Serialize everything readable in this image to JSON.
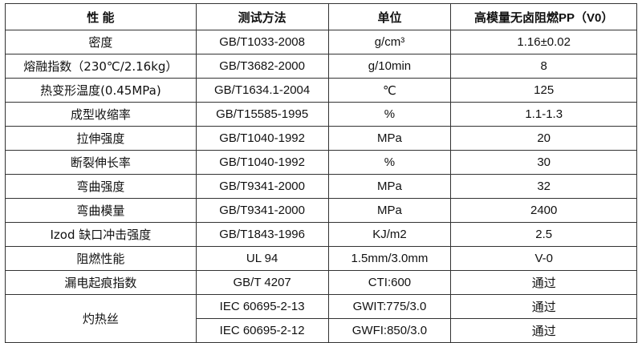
{
  "headers": [
    "性 能",
    "测试方法",
    "单位",
    "高模量无卤阻燃PP（V0）"
  ],
  "rows": [
    {
      "property": "密度",
      "method": "GB/T1033-2008",
      "unit": "g/cm³",
      "value": "1.16±0.02"
    },
    {
      "property": "熔融指数（230℃/2.16kg）",
      "method": "GB/T3682-2000",
      "unit": "g/10min",
      "value": "8"
    },
    {
      "property": "热变形温度(0.45MPa)",
      "method": "GB/T1634.1-2004",
      "unit": "℃",
      "value": "125"
    },
    {
      "property": "成型收缩率",
      "method": "GB/T15585-1995",
      "unit": "%",
      "value": "1.1-1.3"
    },
    {
      "property": "拉伸强度",
      "method": "GB/T1040-1992",
      "unit": "MPa",
      "value": "20"
    },
    {
      "property": "断裂伸长率",
      "method": "GB/T1040-1992",
      "unit": "%",
      "value": "30"
    },
    {
      "property": "弯曲强度",
      "method": "GB/T9341-2000",
      "unit": "MPa",
      "value": "32"
    },
    {
      "property": "弯曲模量",
      "method": "GB/T9341-2000",
      "unit": "MPa",
      "value": "2400"
    },
    {
      "property": "Izod 缺口冲击强度",
      "method": "GB/T1843-1996",
      "unit": "KJ/m2",
      "value": "2.5"
    },
    {
      "property": "阻燃性能",
      "method": "UL 94",
      "unit": "1.5mm/3.0mm",
      "value": "V-0"
    },
    {
      "property": "漏电起痕指数",
      "method": "GB/T 4207",
      "unit": "CTI:600",
      "value": "通过"
    }
  ],
  "glow_wire": {
    "property": "灼热丝",
    "rows": [
      {
        "method": "IEC 60695-2-13",
        "unit": "GWIT:775/3.0",
        "value": "通过"
      },
      {
        "method": "IEC 60695-2-12",
        "unit": "GWFI:850/3.0",
        "value": "通过"
      }
    ]
  }
}
